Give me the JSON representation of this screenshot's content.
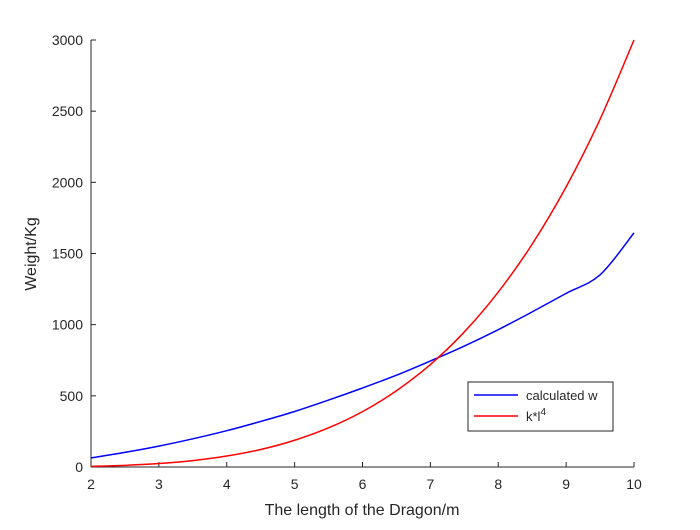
{
  "chart_data": {
    "type": "line",
    "title": "",
    "xlabel": "The length of the Dragon/m",
    "ylabel": "Weight/Kg",
    "xlim": [
      2,
      10
    ],
    "ylim": [
      0,
      3000
    ],
    "xticks": [
      2,
      3,
      4,
      5,
      6,
      7,
      8,
      9,
      10
    ],
    "yticks": [
      0,
      500,
      1000,
      1500,
      2000,
      2500,
      3000
    ],
    "grid": false,
    "legend_position": "lower-right",
    "series": [
      {
        "name": "calculated w",
        "color": "#0000ff",
        "x": [
          2,
          2.5,
          3,
          3.5,
          4,
          4.5,
          5,
          5.5,
          6,
          6.5,
          7,
          7.5,
          8,
          8.5,
          9,
          9.5,
          10
        ],
        "y": [
          64,
          103,
          147,
          198,
          255,
          320,
          390,
          470,
          555,
          645,
          745,
          850,
          965,
          1090,
          1220,
          1350,
          1645
        ]
      },
      {
        "name": "k*l",
        "name_superscript": "4",
        "color": "#ff0000",
        "x": [
          2,
          2.5,
          3,
          3.5,
          4,
          4.5,
          5,
          5.5,
          6,
          6.5,
          7,
          7.5,
          8,
          8.5,
          9,
          9.5,
          10
        ],
        "y": [
          4.8,
          11.7,
          24.3,
          45,
          77,
          123,
          188,
          275,
          389,
          536,
          720,
          949,
          1229,
          1566,
          1968,
          2443,
          3000
        ]
      }
    ]
  }
}
